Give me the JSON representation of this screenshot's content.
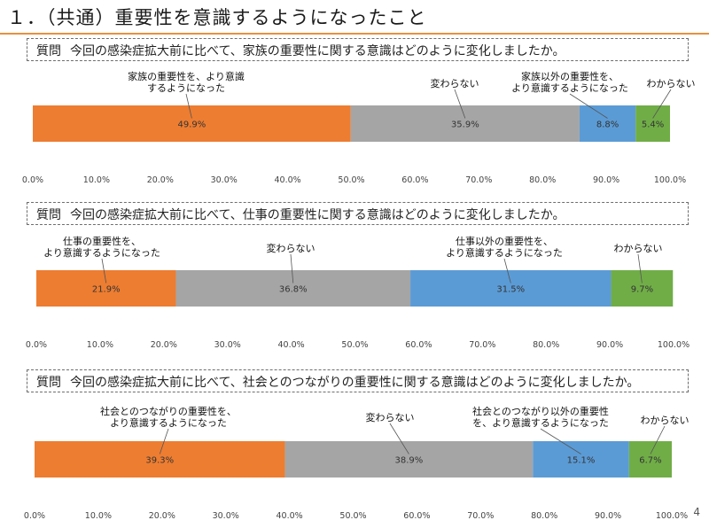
{
  "page": {
    "title": "１．（共通）重要性を意識するようになったこと",
    "page_number": "4"
  },
  "questions": [
    {
      "prefix": "質問",
      "text": "今回の感染症拡大前に比べて、家族の重要性に関する意識はどのように変化しましたか。"
    },
    {
      "prefix": "質問",
      "text": "今回の感染症拡大前に比べて、仕事の重要性に関する意識はどのように変化しましたか。"
    },
    {
      "prefix": "質問",
      "text": "今回の感染症拡大前に比べて、社会とのつながりの重要性に関する意識はどのように変化しましたか。"
    }
  ],
  "colors": {
    "more_important": "#ed7d31",
    "unchanged": "#a5a5a5",
    "other_more_important": "#5b9bd5",
    "unknown": "#70ad47",
    "title_rule": "#e7913f"
  },
  "chart_data": [
    {
      "type": "bar",
      "orientation": "horizontal",
      "stacked": true,
      "xlim": [
        0,
        100
      ],
      "x_ticks": [
        "0.0%",
        "10.0%",
        "20.0%",
        "30.0%",
        "40.0%",
        "50.0%",
        "60.0%",
        "70.0%",
        "80.0%",
        "90.0%",
        "100.0%"
      ],
      "grid": false,
      "segments": [
        {
          "key": "more_important",
          "value": 49.9,
          "label": "49.9%",
          "annotation": [
            "家族の重要性を、より意識",
            "するようになった"
          ]
        },
        {
          "key": "unchanged",
          "value": 35.9,
          "label": "35.9%",
          "annotation": [
            "変わらない"
          ]
        },
        {
          "key": "other_more_important",
          "value": 8.8,
          "label": "8.8%",
          "annotation": [
            "家族以外の重要性を、",
            "より意識するようになった"
          ]
        },
        {
          "key": "unknown",
          "value": 5.4,
          "label": "5.4%",
          "annotation": [
            "わからない"
          ]
        }
      ]
    },
    {
      "type": "bar",
      "orientation": "horizontal",
      "stacked": true,
      "xlim": [
        0,
        100
      ],
      "x_ticks": [
        "0.0%",
        "10.0%",
        "20.0%",
        "30.0%",
        "40.0%",
        "50.0%",
        "60.0%",
        "70.0%",
        "80.0%",
        "90.0%",
        "100.0%"
      ],
      "grid": false,
      "segments": [
        {
          "key": "more_important",
          "value": 21.9,
          "label": "21.9%",
          "annotation": [
            "仕事の重要性を、",
            "より意識するようになった"
          ]
        },
        {
          "key": "unchanged",
          "value": 36.8,
          "label": "36.8%",
          "annotation": [
            "変わらない"
          ]
        },
        {
          "key": "other_more_important",
          "value": 31.5,
          "label": "31.5%",
          "annotation": [
            "仕事以外の重要性を、",
            "より意識するようになった"
          ]
        },
        {
          "key": "unknown",
          "value": 9.7,
          "label": "9.7%",
          "annotation": [
            "わからない"
          ]
        }
      ]
    },
    {
      "type": "bar",
      "orientation": "horizontal",
      "stacked": true,
      "xlim": [
        0,
        100
      ],
      "x_ticks": [
        "0.0%",
        "10.0%",
        "20.0%",
        "30.0%",
        "40.0%",
        "50.0%",
        "60.0%",
        "70.0%",
        "80.0%",
        "90.0%",
        "100.0%"
      ],
      "grid": false,
      "segments": [
        {
          "key": "more_important",
          "value": 39.3,
          "label": "39.3%",
          "annotation": [
            "社会とのつながりの重要性を、",
            "より意識するようになった"
          ]
        },
        {
          "key": "unchanged",
          "value": 38.9,
          "label": "38.9%",
          "annotation": [
            "変わらない"
          ]
        },
        {
          "key": "other_more_important",
          "value": 15.1,
          "label": "15.1%",
          "annotation": [
            "社会とのつながり以外の重要性",
            "を、より意識するようになった"
          ]
        },
        {
          "key": "unknown",
          "value": 6.7,
          "label": "6.7%",
          "annotation": [
            "わからない"
          ]
        }
      ]
    }
  ]
}
